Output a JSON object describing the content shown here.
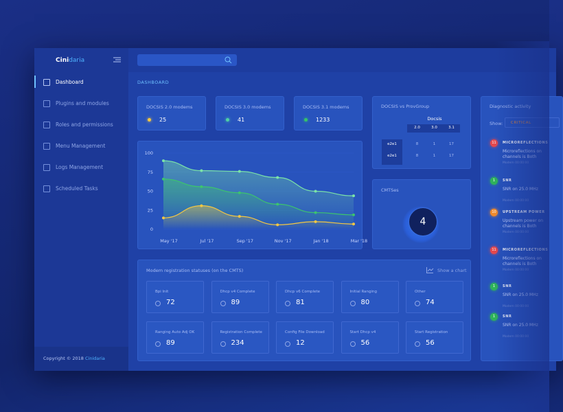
{
  "sidebar": {
    "brand": [
      "Cini",
      "daria"
    ],
    "nav": [
      "Dashboard",
      "Plugins and modules",
      "Roles and permissions",
      "Menu Management",
      "Logs Management",
      "Scheduled Tasks"
    ],
    "footer": {
      "copyright": "Copyright © 2018",
      "brand": "Cinidaria"
    }
  },
  "header": {
    "title": "DASHBOARD"
  },
  "stats": [
    {
      "label": "DOCSIS 2.0 modems",
      "value": 25,
      "color": "#f5c842"
    },
    {
      "label": "DOCSIS 3.0 modems",
      "value": 41,
      "color": "#4fd1a5"
    },
    {
      "label": "DOCSIS 3.1 modems",
      "value": 1233,
      "color": "#35c46a"
    }
  ],
  "provgroup": {
    "title": "DOCSIS vs ProvGroup",
    "group": "Docsis",
    "columns": [
      "2.0",
      "3.0",
      "3.1"
    ],
    "rows": [
      {
        "name": "e2e1",
        "values": [
          8,
          1,
          17
        ]
      },
      {
        "name": "e2e1",
        "values": [
          8,
          1,
          17
        ]
      }
    ]
  },
  "cmts": {
    "title": "CMTSes",
    "value": 4
  },
  "chart_data": {
    "type": "line",
    "categories": [
      "May '17",
      "Jul '17",
      "Sep '17",
      "Nov '17",
      "Jan '18",
      "Mar '18"
    ],
    "series": [
      {
        "color": "#7be3a8",
        "values": [
          90,
          77,
          76,
          68,
          50,
          44
        ]
      },
      {
        "color": "#3cc46e",
        "values": [
          66,
          56,
          48,
          33,
          22,
          19
        ]
      },
      {
        "color": "#f5c842",
        "values": [
          15,
          31,
          17,
          6,
          10,
          7
        ]
      }
    ],
    "ylim": [
      0,
      100
    ],
    "yticks": [
      0,
      25,
      50,
      75,
      100
    ]
  },
  "registration": {
    "title": "Modem registration statuses (on the CMTS)",
    "action": "Show a chart",
    "tiles": [
      {
        "label": "Bpi Init",
        "value": 72
      },
      {
        "label": "Dhcp v4 Complete",
        "value": 89
      },
      {
        "label": "Dhcp v6 Complete",
        "value": 81
      },
      {
        "label": "Initial Ranging",
        "value": 80
      },
      {
        "label": "Other",
        "value": 74
      },
      {
        "label": "Ranging Auto Adj OK",
        "value": 89
      },
      {
        "label": "Registration Complete",
        "value": 234
      },
      {
        "label": "Config File Download",
        "value": 12
      },
      {
        "label": "Start Dhcp v4",
        "value": 56
      },
      {
        "label": "Start Registration",
        "value": 56
      }
    ]
  },
  "diagnostics": {
    "title": "Diagnostic activity",
    "show": "Show:",
    "filter": "CRITICAL",
    "items": [
      {
        "count": 11,
        "color": "#e5484d",
        "title": "MICROREFLECTIONS",
        "text": "Microreflections on channels is Both",
        "meta": "Modem 00:00:00"
      },
      {
        "count": 1,
        "color": "#2fb35a",
        "title": "SNR",
        "text": "SNR on 25.0 MHz",
        "meta": "Modem 00:00:00"
      },
      {
        "count": 10,
        "color": "#f08a2c",
        "title": "UPSTREAM POWER",
        "text": "Upstream power on channels is Both",
        "meta": "Modem 00:00:00"
      },
      {
        "count": 11,
        "color": "#e5484d",
        "title": "MICROREFLECTIONS",
        "text": "Microreflections on channels is Both",
        "meta": "Modem 00:00:00"
      },
      {
        "count": 1,
        "color": "#2fb35a",
        "title": "SNR",
        "text": "SNR on 25.0 MHz",
        "meta": "Modem 00:00:00"
      },
      {
        "count": 1,
        "color": "#2fb35a",
        "title": "SNR",
        "text": "SNR on 25.0 MHz",
        "meta": "Modem 00:00:00"
      }
    ]
  }
}
